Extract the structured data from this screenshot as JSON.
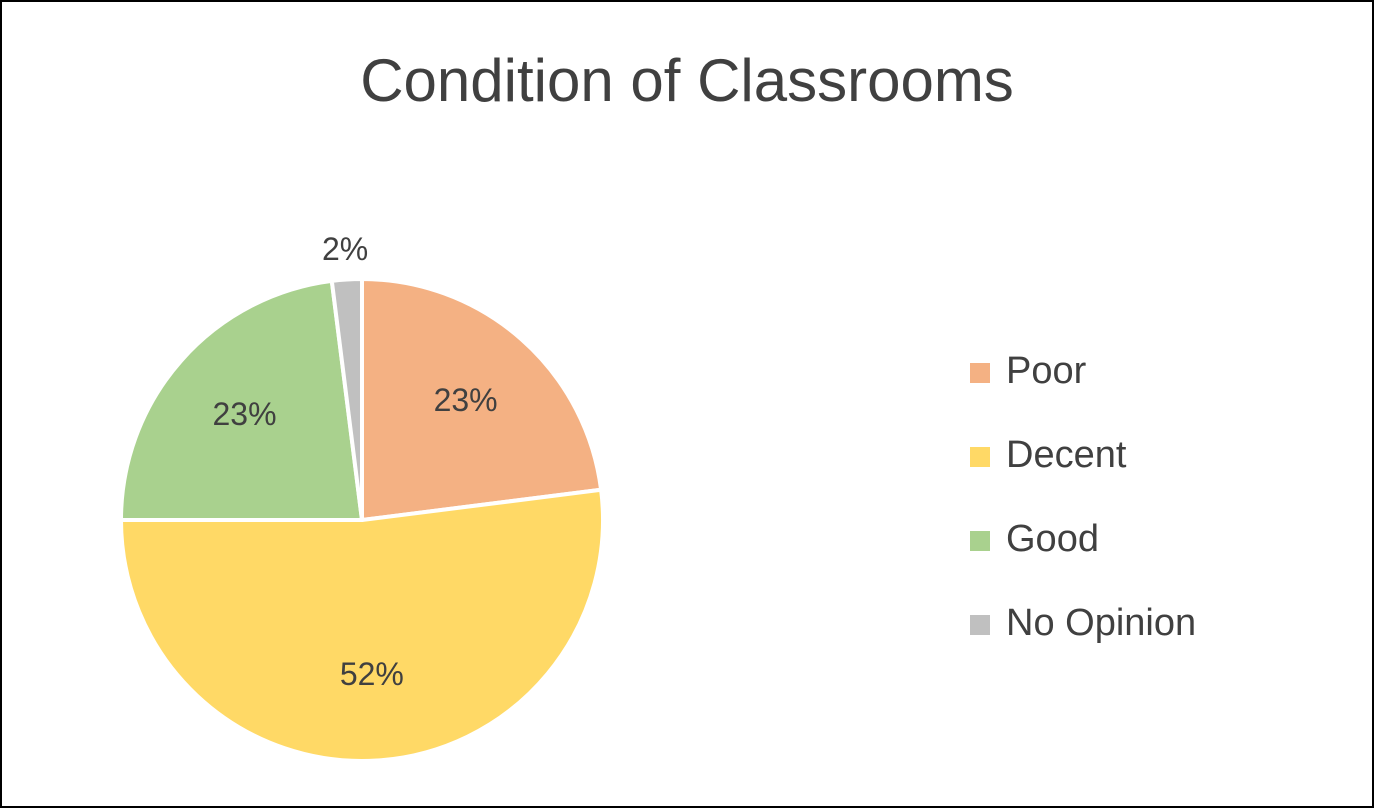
{
  "chart_data": {
    "type": "pie",
    "title": "Condition of Classrooms",
    "categories": [
      "Poor",
      "Decent",
      "Good",
      "No Opinion"
    ],
    "values": [
      23,
      52,
      23,
      2
    ],
    "value_labels": [
      "23%",
      "52%",
      "23%",
      "2%"
    ],
    "colors": [
      "#f4b183",
      "#ffd966",
      "#a9d18e",
      "#c0c0c0"
    ],
    "legend": "right"
  }
}
